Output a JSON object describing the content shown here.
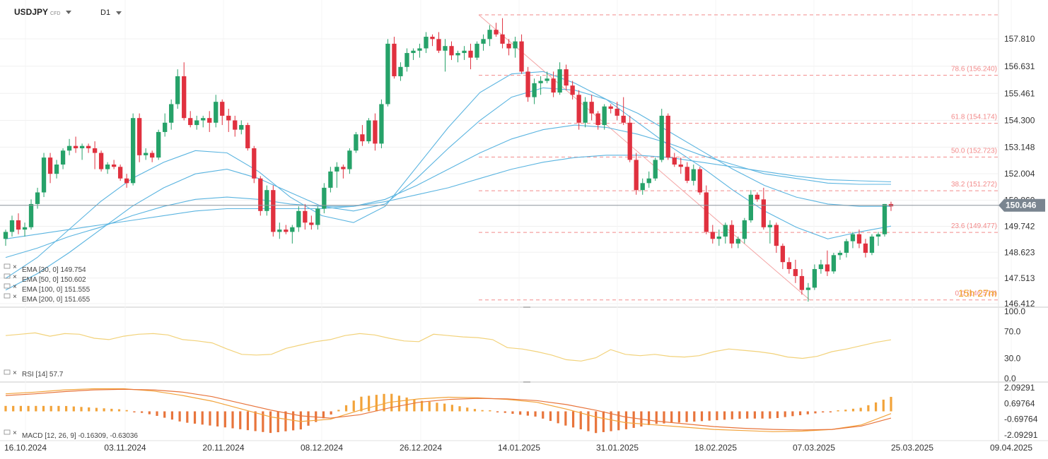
{
  "header": {
    "symbol": "USDJPY",
    "symbol_type": "CFD",
    "timeframe": "D1"
  },
  "chart_data": {
    "type": "candlestick",
    "symbol": "USDJPY",
    "timeframe": "D1",
    "ylim": [
      146.0,
      158.5
    ],
    "y_ticks": [
      157.81,
      156.631,
      155.461,
      154.3,
      153.148,
      152.004,
      150.86,
      149.742,
      148.623,
      147.513,
      146.412
    ],
    "y_tick_labels": [
      "157.810",
      "156.631",
      "155.461",
      "154.300",
      "153.148",
      "152.004",
      "150.860",
      "149.742",
      "148.623",
      "147.513",
      "146.412"
    ],
    "x_labels": [
      "16.10.2024",
      "03.11.2024",
      "20.11.2024",
      "08.12.2024",
      "26.12.2024",
      "14.01.2025",
      "31.01.2025",
      "18.02.2025",
      "07.03.2025",
      "25.03.2025",
      "09.04.2025"
    ],
    "current_price": 150.646,
    "current_price_label": "150.646",
    "countdown": "15h 27m",
    "fibonacci": [
      {
        "label": "78.6 (156.240)",
        "value": 156.24
      },
      {
        "label": "61.8 (154.174)",
        "value": 154.174
      },
      {
        "label": "50.0 (152.723)",
        "value": 152.723
      },
      {
        "label": "38.2 (151.272)",
        "value": 151.272
      },
      {
        "label": "23.6 (149.477)",
        "value": 149.477
      },
      {
        "label": "0.0 (146.573)",
        "value": 146.573
      }
    ],
    "fib_high": 158.87,
    "fib_low": 146.573,
    "ema_legend": [
      {
        "label": "EMA [30, 0] 149.754"
      },
      {
        "label": "EMA [50, 0] 150.602"
      },
      {
        "label": "EMA [100, 0] 151.555"
      },
      {
        "label": "EMA [200, 0] 151.655"
      }
    ],
    "colors": {
      "up": "#26a269",
      "down": "#e0313f",
      "ema": "#5ab4e0",
      "rsi": "#f2d27a",
      "macd": "#e8743b",
      "signal": "#f2a33a",
      "fib": "#f28b8b",
      "price_tag": "#7a8590"
    },
    "candles_ohlc": [
      [
        149.2,
        149.6,
        148.9,
        149.5
      ],
      [
        149.5,
        150.2,
        149.3,
        150.0
      ],
      [
        150.0,
        150.3,
        149.4,
        149.6
      ],
      [
        149.6,
        149.9,
        149.3,
        149.7
      ],
      [
        149.7,
        150.9,
        149.6,
        150.7
      ],
      [
        150.7,
        151.4,
        150.5,
        151.2
      ],
      [
        151.2,
        152.9,
        151.0,
        152.7
      ],
      [
        152.7,
        152.9,
        151.6,
        152.0
      ],
      [
        152.0,
        152.6,
        151.8,
        152.4
      ],
      [
        152.4,
        153.1,
        152.2,
        153.0
      ],
      [
        153.0,
        153.5,
        152.8,
        153.2
      ],
      [
        153.2,
        153.6,
        152.9,
        153.1
      ],
      [
        153.1,
        153.3,
        152.6,
        153.2
      ],
      [
        153.2,
        153.3,
        152.9,
        153.1
      ],
      [
        153.1,
        153.4,
        152.2,
        152.9
      ],
      [
        152.9,
        153.0,
        152.1,
        152.2
      ],
      [
        152.2,
        152.5,
        152.0,
        152.4
      ],
      [
        152.4,
        152.6,
        152.2,
        152.3
      ],
      [
        152.3,
        152.4,
        151.7,
        151.8
      ],
      [
        151.8,
        152.0,
        151.4,
        151.6
      ],
      [
        151.6,
        154.6,
        151.5,
        154.4
      ],
      [
        154.4,
        154.6,
        152.5,
        152.8
      ],
      [
        152.8,
        153.1,
        152.6,
        152.9
      ],
      [
        152.9,
        153.0,
        152.5,
        152.7
      ],
      [
        152.7,
        153.9,
        152.6,
        153.8
      ],
      [
        153.8,
        154.6,
        153.6,
        154.2
      ],
      [
        154.2,
        155.2,
        153.9,
        155.0
      ],
      [
        155.0,
        156.5,
        154.8,
        156.2
      ],
      [
        156.2,
        156.8,
        154.3,
        154.4
      ],
      [
        154.4,
        154.7,
        154.0,
        154.1
      ],
      [
        154.1,
        154.5,
        153.9,
        154.3
      ],
      [
        154.3,
        154.5,
        154.0,
        154.4
      ],
      [
        154.4,
        154.7,
        153.8,
        154.2
      ],
      [
        154.2,
        155.4,
        154.0,
        155.1
      ],
      [
        155.1,
        155.2,
        154.1,
        154.5
      ],
      [
        154.5,
        154.8,
        153.8,
        154.3
      ],
      [
        154.3,
        154.5,
        153.6,
        153.9
      ],
      [
        153.9,
        154.3,
        153.7,
        154.1
      ],
      [
        154.1,
        154.2,
        153.0,
        153.1
      ],
      [
        153.1,
        153.2,
        151.6,
        151.8
      ],
      [
        151.8,
        151.9,
        150.2,
        150.4
      ],
      [
        150.4,
        151.5,
        150.2,
        151.3
      ],
      [
        151.3,
        151.5,
        149.3,
        149.5
      ],
      [
        149.5,
        149.9,
        149.2,
        149.6
      ],
      [
        149.6,
        149.8,
        149.4,
        149.5
      ],
      [
        149.5,
        149.8,
        149.0,
        149.7
      ],
      [
        149.7,
        150.6,
        149.5,
        150.4
      ],
      [
        150.4,
        150.7,
        149.6,
        149.9
      ],
      [
        149.9,
        150.2,
        149.6,
        149.8
      ],
      [
        149.8,
        150.6,
        149.6,
        150.5
      ],
      [
        150.5,
        151.6,
        150.3,
        151.4
      ],
      [
        151.4,
        152.3,
        151.2,
        152.1
      ],
      [
        152.1,
        152.5,
        151.4,
        152.3
      ],
      [
        152.3,
        152.4,
        151.8,
        152.2
      ],
      [
        152.2,
        153.1,
        152.0,
        153.0
      ],
      [
        153.0,
        153.8,
        152.9,
        153.7
      ],
      [
        153.7,
        154.1,
        153.2,
        153.4
      ],
      [
        153.4,
        154.4,
        153.3,
        154.3
      ],
      [
        154.3,
        154.6,
        153.0,
        153.3
      ],
      [
        153.3,
        155.2,
        153.1,
        155.0
      ],
      [
        155.0,
        157.8,
        154.9,
        157.6
      ],
      [
        157.6,
        157.9,
        156.1,
        156.2
      ],
      [
        156.2,
        156.8,
        156.0,
        156.6
      ],
      [
        156.6,
        157.4,
        156.4,
        157.2
      ],
      [
        157.2,
        157.4,
        156.9,
        157.3
      ],
      [
        157.3,
        157.6,
        157.0,
        157.4
      ],
      [
        157.4,
        158.1,
        157.2,
        157.9
      ],
      [
        157.9,
        158.0,
        157.5,
        157.8
      ],
      [
        157.8,
        158.1,
        157.2,
        157.3
      ],
      [
        157.3,
        157.8,
        156.4,
        157.5
      ],
      [
        157.5,
        157.7,
        156.9,
        157.1
      ],
      [
        157.1,
        157.3,
        156.8,
        157.2
      ],
      [
        157.2,
        157.5,
        156.9,
        157.3
      ],
      [
        157.3,
        157.6,
        156.5,
        157.0
      ],
      [
        157.0,
        157.7,
        156.9,
        157.6
      ],
      [
        157.6,
        158.0,
        157.3,
        157.8
      ],
      [
        157.8,
        158.4,
        157.5,
        158.2
      ],
      [
        158.2,
        158.5,
        157.9,
        158.0
      ],
      [
        158.0,
        158.7,
        157.4,
        157.6
      ],
      [
        157.6,
        157.8,
        157.1,
        157.4
      ],
      [
        157.4,
        157.9,
        157.0,
        157.7
      ],
      [
        157.7,
        158.0,
        156.3,
        156.4
      ],
      [
        156.4,
        156.6,
        155.1,
        155.3
      ],
      [
        155.3,
        156.1,
        155.0,
        155.9
      ],
      [
        155.9,
        156.2,
        155.4,
        156.0
      ],
      [
        156.0,
        156.4,
        155.9,
        156.1
      ],
      [
        156.1,
        156.4,
        155.3,
        155.5
      ],
      [
        155.5,
        156.8,
        155.4,
        156.5
      ],
      [
        156.5,
        156.7,
        155.6,
        155.8
      ],
      [
        155.8,
        156.0,
        155.2,
        155.4
      ],
      [
        155.4,
        155.6,
        153.9,
        154.2
      ],
      [
        154.2,
        155.3,
        154.0,
        155.1
      ],
      [
        155.1,
        155.4,
        154.3,
        154.6
      ],
      [
        154.6,
        154.7,
        153.9,
        154.1
      ],
      [
        154.1,
        155.0,
        153.9,
        154.9
      ],
      [
        154.9,
        155.0,
        154.6,
        154.8
      ],
      [
        154.8,
        155.1,
        154.3,
        154.5
      ],
      [
        154.5,
        155.3,
        154.1,
        154.2
      ],
      [
        154.2,
        154.5,
        152.5,
        152.6
      ],
      [
        152.6,
        152.9,
        151.1,
        151.3
      ],
      [
        151.3,
        151.8,
        151.1,
        151.6
      ],
      [
        151.6,
        152.1,
        151.4,
        151.8
      ],
      [
        151.8,
        152.7,
        151.7,
        152.6
      ],
      [
        152.6,
        154.8,
        152.5,
        154.5
      ],
      [
        154.5,
        154.6,
        152.6,
        152.7
      ],
      [
        152.7,
        152.9,
        152.3,
        152.4
      ],
      [
        152.4,
        152.7,
        152.0,
        152.3
      ],
      [
        152.3,
        152.5,
        151.6,
        151.7
      ],
      [
        151.7,
        152.4,
        151.5,
        152.2
      ],
      [
        152.2,
        152.3,
        151.1,
        151.2
      ],
      [
        151.2,
        151.5,
        149.4,
        149.5
      ],
      [
        149.5,
        149.8,
        149.0,
        149.2
      ],
      [
        149.2,
        149.6,
        148.9,
        149.3
      ],
      [
        149.3,
        149.9,
        149.0,
        149.8
      ],
      [
        149.8,
        150.0,
        148.8,
        149.0
      ],
      [
        149.0,
        149.3,
        148.8,
        149.2
      ],
      [
        149.2,
        150.1,
        149.0,
        150.0
      ],
      [
        150.0,
        151.3,
        149.9,
        151.1
      ],
      [
        151.1,
        151.2,
        150.8,
        150.9
      ],
      [
        150.9,
        151.4,
        149.6,
        149.7
      ],
      [
        149.7,
        150.0,
        149.0,
        149.8
      ],
      [
        149.8,
        149.9,
        148.6,
        148.9
      ],
      [
        148.9,
        149.0,
        147.9,
        148.2
      ],
      [
        148.2,
        148.4,
        147.7,
        147.9
      ],
      [
        147.9,
        148.3,
        147.3,
        147.6
      ],
      [
        147.6,
        147.9,
        146.8,
        147.0
      ],
      [
        147.0,
        147.3,
        146.5,
        147.1
      ],
      [
        147.1,
        148.1,
        147.0,
        147.9
      ],
      [
        147.9,
        148.3,
        147.7,
        148.1
      ],
      [
        148.1,
        148.7,
        147.6,
        147.8
      ],
      [
        147.8,
        148.6,
        147.7,
        148.5
      ],
      [
        148.5,
        148.7,
        148.3,
        148.6
      ],
      [
        148.6,
        149.2,
        148.4,
        149.1
      ],
      [
        149.1,
        149.5,
        148.8,
        149.4
      ],
      [
        149.4,
        149.6,
        148.8,
        149.0
      ],
      [
        149.0,
        149.2,
        148.4,
        148.6
      ],
      [
        148.6,
        149.4,
        148.5,
        149.3
      ],
      [
        149.3,
        149.5,
        148.9,
        149.4
      ],
      [
        149.4,
        150.7,
        149.3,
        150.7
      ],
      [
        150.7,
        150.8,
        150.4,
        150.6
      ]
    ],
    "ema_approx": {
      "ema30": [
        147.5,
        148.4,
        149.6,
        150.8,
        151.8,
        152.5,
        153.0,
        152.9,
        152.1,
        151.0,
        150.2,
        149.9,
        150.6,
        152.3,
        154.0,
        155.5,
        156.3,
        156.4,
        155.9,
        155.2,
        154.2,
        153.2,
        152.3,
        151.3,
        150.4,
        149.7,
        149.2,
        149.5,
        149.75
      ],
      "ema50": [
        147.0,
        147.7,
        148.6,
        149.6,
        150.6,
        151.4,
        152.0,
        152.2,
        151.8,
        151.2,
        150.6,
        150.4,
        150.7,
        151.8,
        153.1,
        154.3,
        155.3,
        155.7,
        155.6,
        155.2,
        154.6,
        153.8,
        153.0,
        152.2,
        151.5,
        151.0,
        150.7,
        150.6,
        150.6
      ],
      "ema100": [
        148.4,
        148.8,
        149.3,
        149.7,
        150.2,
        150.6,
        150.9,
        151.0,
        150.9,
        150.7,
        150.6,
        150.6,
        150.9,
        151.5,
        152.2,
        152.9,
        153.5,
        153.9,
        154.1,
        154.0,
        153.7,
        153.3,
        152.8,
        152.4,
        152.0,
        151.8,
        151.6,
        151.55,
        151.55
      ],
      "ema200": [
        149.2,
        149.4,
        149.6,
        149.8,
        150.0,
        150.2,
        150.4,
        150.5,
        150.5,
        150.5,
        150.5,
        150.6,
        150.8,
        151.1,
        151.4,
        151.8,
        152.2,
        152.5,
        152.7,
        152.8,
        152.8,
        152.7,
        152.5,
        152.3,
        152.1,
        151.9,
        151.75,
        151.7,
        151.655
      ]
    },
    "rsi": {
      "label": "RSI [14] 57.7",
      "value": 57.7,
      "ylim": [
        0,
        100
      ],
      "ticks": [
        100.0,
        70.0,
        30.0,
        0.0
      ],
      "tick_labels": [
        "100.0",
        "70.0",
        "30.0",
        "0.0"
      ],
      "values": [
        64,
        66,
        68,
        63,
        67,
        66,
        60,
        58,
        63,
        66,
        67,
        65,
        58,
        56,
        53,
        44,
        36,
        35,
        36,
        45,
        50,
        55,
        58,
        64,
        67,
        65,
        60,
        56,
        55,
        66,
        64,
        62,
        61,
        58,
        46,
        44,
        40,
        35,
        28,
        26,
        31,
        43,
        36,
        34,
        36,
        33,
        32,
        34,
        40,
        44,
        42,
        40,
        37,
        32,
        30,
        33,
        40,
        44,
        49,
        54,
        57.7
      ]
    },
    "macd": {
      "label": "MACD [12, 26, 9] -0.16309, -0.63036",
      "macd_value": -0.16309,
      "signal_value": -0.63036,
      "ylim": [
        -2.6,
        2.5
      ],
      "ticks": [
        2.09291,
        0.69764,
        -0.69764,
        -2.09291
      ],
      "tick_labels": [
        "2.09291",
        "0.69764",
        "-0.69764",
        "-2.09291"
      ],
      "macd_line": [
        1.55,
        1.7,
        1.9,
        2.0,
        2.0,
        1.8,
        1.4,
        0.9,
        0.2,
        -0.5,
        -0.9,
        -0.7,
        0.1,
        0.8,
        1.1,
        1.25,
        1.2,
        1.05,
        0.8,
        0.2,
        -0.5,
        -1.0,
        -1.2,
        -1.4,
        -1.6,
        -1.7,
        -1.8,
        -1.75,
        -1.6,
        -1.2,
        -0.2
      ],
      "signal_line": [
        1.4,
        1.55,
        1.75,
        1.9,
        1.95,
        1.9,
        1.7,
        1.3,
        0.7,
        0.1,
        -0.4,
        -0.6,
        -0.3,
        0.3,
        0.8,
        1.05,
        1.15,
        1.1,
        0.95,
        0.6,
        0.1,
        -0.5,
        -0.85,
        -1.1,
        -1.35,
        -1.5,
        -1.6,
        -1.65,
        -1.6,
        -1.3,
        -0.6
      ],
      "histogram": [
        0.15,
        0.15,
        0.15,
        0.1,
        0.05,
        -0.1,
        -0.3,
        -0.4,
        -0.5,
        -0.6,
        -0.5,
        -0.1,
        0.4,
        0.5,
        0.3,
        0.2,
        0.05,
        -0.05,
        -0.15,
        -0.4,
        -0.6,
        -0.5,
        -0.35,
        -0.3,
        -0.25,
        -0.2,
        -0.2,
        -0.1,
        0.0,
        0.1,
        0.4
      ]
    }
  }
}
